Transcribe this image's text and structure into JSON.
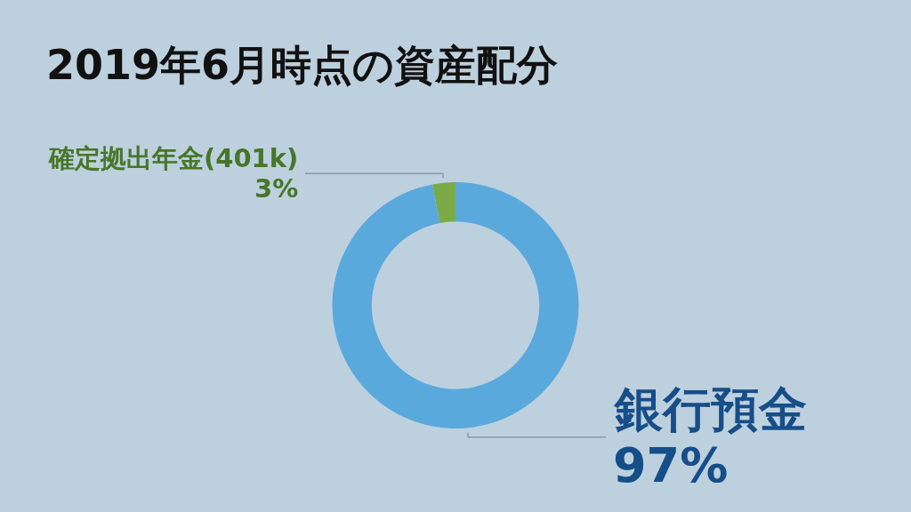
{
  "chart_data": {
    "type": "donut",
    "title": "2019年6月時点の資産配分",
    "categories": [
      "確定拠出年金(401k)",
      "銀行預金"
    ],
    "values": [
      3,
      97
    ],
    "value_labels": [
      "3%",
      "97%"
    ],
    "colors": [
      "#7aab46",
      "#5aa9dc"
    ],
    "legend": false
  }
}
